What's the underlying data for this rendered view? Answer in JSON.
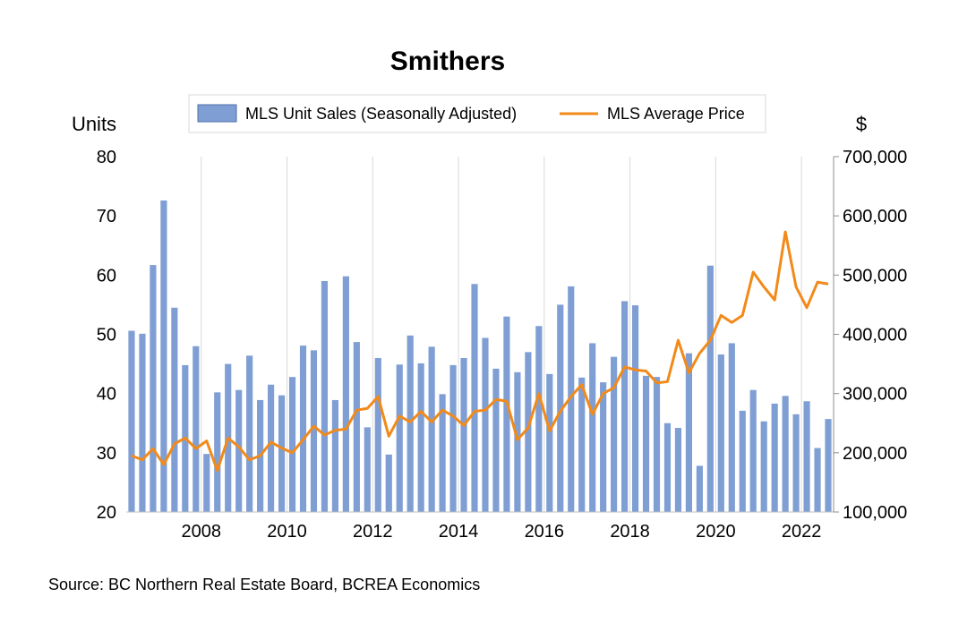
{
  "chart_data": {
    "type": "bar",
    "title": "Smithers",
    "source": "Source:  BC Northern Real Estate Board, BCREA Economics",
    "left_axis": {
      "label": "Units",
      "ylim": [
        20,
        80
      ],
      "ticks": [
        "20",
        "30",
        "40",
        "50",
        "60",
        "70",
        "80"
      ]
    },
    "right_axis": {
      "label": "$",
      "ylim": [
        100000,
        700000
      ],
      "ticks": [
        "100,000",
        "200,000",
        "300,000",
        "400,000",
        "500,000",
        "600,000",
        "700,000"
      ]
    },
    "x_ticks": [
      "2008",
      "2010",
      "2012",
      "2014",
      "2016",
      "2018",
      "2020",
      "2022"
    ],
    "x_range_start": "2006 Q3",
    "grid": "vertical",
    "legend": {
      "placement": "top-center",
      "bar_label": "MLS Unit Sales (Seasonally Adjusted)",
      "line_label": "MLS Average Price"
    },
    "colors": {
      "bars": "#7f9fd4",
      "bar_edge": "#4f6ea8",
      "line": "#f28a1a",
      "grid": "#d9d9d9"
    },
    "series": [
      {
        "name": "MLS Unit Sales (Seasonally Adjusted)",
        "type": "bar",
        "axis": "left",
        "values": [
          50.6,
          50.1,
          61.7,
          72.6,
          54.5,
          44.8,
          48.0,
          29.8,
          40.2,
          45.0,
          40.6,
          46.4,
          38.9,
          41.5,
          39.7,
          42.8,
          48.1,
          47.3,
          59.0,
          38.9,
          59.8,
          48.7,
          34.3,
          46.0,
          29.7,
          44.9,
          49.8,
          45.1,
          47.9,
          39.9,
          44.8,
          46.0,
          58.5,
          49.4,
          44.2,
          53.0,
          43.6,
          47.0,
          51.4,
          43.3,
          55.0,
          58.1,
          42.7,
          48.5,
          41.9,
          46.2,
          55.6,
          54.9,
          43.0,
          42.8,
          35.0,
          34.2,
          46.8,
          27.8,
          61.6,
          46.6,
          48.5,
          37.1,
          40.6,
          35.3,
          38.3,
          39.6,
          36.5,
          38.7,
          30.8,
          35.7
        ]
      },
      {
        "name": "MLS Average Price",
        "type": "line",
        "axis": "right",
        "values": [
          195000,
          188000,
          207000,
          180000,
          215000,
          225000,
          207000,
          220000,
          170000,
          225000,
          210000,
          188000,
          195000,
          218000,
          208000,
          200000,
          222000,
          245000,
          230000,
          238000,
          240000,
          272000,
          275000,
          295000,
          228000,
          262000,
          252000,
          270000,
          252000,
          272000,
          262000,
          246000,
          270000,
          272000,
          290000,
          287000,
          222000,
          242000,
          300000,
          237000,
          270000,
          295000,
          315000,
          265000,
          300000,
          310000,
          345000,
          340000,
          338000,
          318000,
          320000,
          390000,
          335000,
          368000,
          390000,
          432000,
          420000,
          432000,
          505000,
          480000,
          458000,
          573000,
          480000,
          445000,
          488000,
          485000
        ]
      }
    ]
  }
}
